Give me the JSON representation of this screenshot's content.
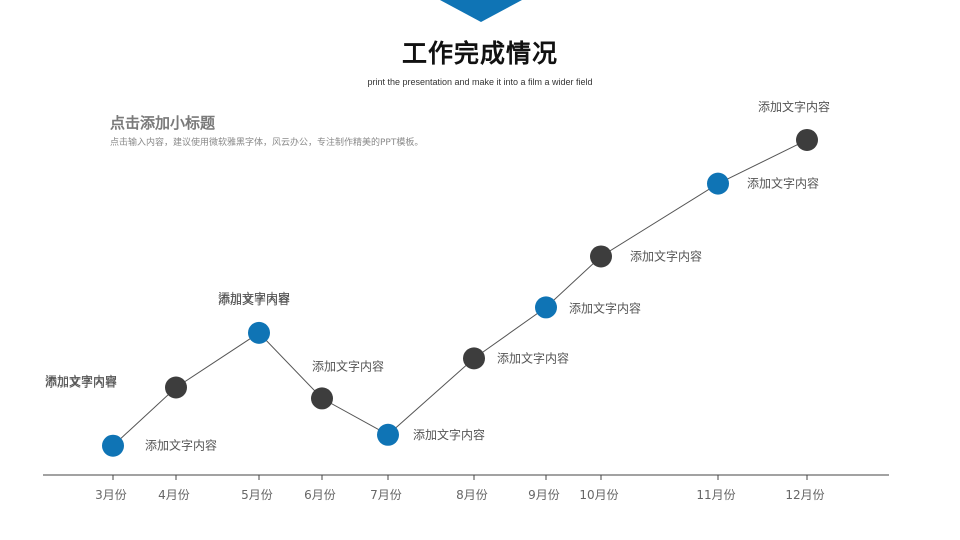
{
  "header": {
    "title": "工作完成情况",
    "subtitle": "print the presentation and make it into a film a wider field"
  },
  "intro": {
    "subheading": "点击添加小标题",
    "description": "点击输入内容，建议使用微软雅黑字体，风云办公，专注制作精美的PPT模板。"
  },
  "colors": {
    "accent": "#0f74b5",
    "marker_dark": "#3d3d3d",
    "line": "#555555",
    "axis": "#444444"
  },
  "chart_data": {
    "type": "line",
    "categories": [
      "3月份",
      "4月份",
      "5月份",
      "6月份",
      "7月份",
      "8月份",
      "9月份",
      "10月份",
      "11月份",
      "12月份"
    ],
    "series": [
      {
        "values": [
          2,
          18,
          33,
          15,
          5,
          26,
          40,
          54,
          74,
          86
        ],
        "marker_colors": [
          "#0f74b5",
          "#3d3d3d",
          "#0f74b5",
          "#3d3d3d",
          "#0f74b5",
          "#3d3d3d",
          "#0f74b5",
          "#3d3d3d",
          "#0f74b5",
          "#3d3d3d"
        ],
        "point_labels": [
          "添加文字内容",
          "添加文字内容",
          "添加文字内容",
          "添加文字内容",
          "添加文字内容",
          "添加文字内容",
          "添加文字内容",
          "添加文字内容",
          "添加文字内容",
          "添加文字内容"
        ]
      }
    ],
    "extra_labels": [
      "添加文字内容",
      "添加文字内容"
    ],
    "ylim": [
      0,
      100
    ],
    "grid": false,
    "title": "",
    "xlabel": "",
    "ylabel": ""
  }
}
